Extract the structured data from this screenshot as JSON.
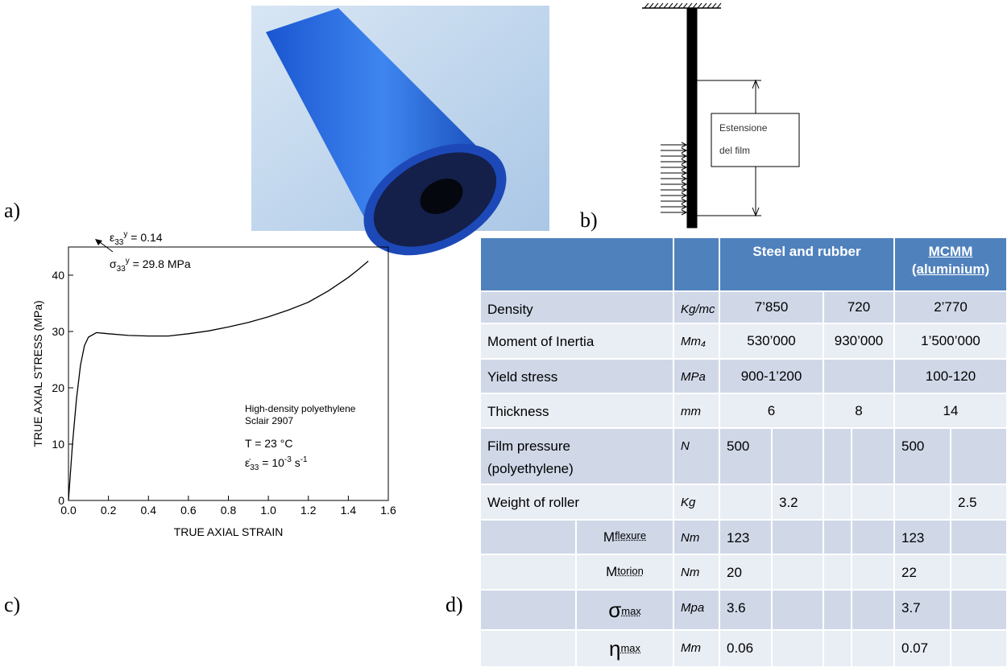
{
  "panel_labels": [
    "a)",
    "b)",
    "c)",
    "d)"
  ],
  "diagram": {
    "box_label": [
      "Estensione",
      "del film"
    ]
  },
  "chart_data": {
    "type": "line",
    "x_label": "TRUE AXIAL STRAIN",
    "y_label": "TRUE AXIAL STRESS (MPa)",
    "x": [
      0,
      0.02,
      0.04,
      0.06,
      0.08,
      0.1,
      0.14,
      0.2,
      0.3,
      0.4,
      0.5,
      0.6,
      0.7,
      0.8,
      0.9,
      1.0,
      1.1,
      1.2,
      1.3,
      1.4,
      1.45,
      1.5
    ],
    "values": [
      0,
      10,
      18,
      24,
      27.5,
      29,
      29.8,
      29.6,
      29.3,
      29.2,
      29.2,
      29.6,
      30.1,
      30.8,
      31.6,
      32.6,
      33.8,
      35.2,
      37.2,
      39.6,
      41,
      42.5
    ],
    "color": "#000000",
    "xlim": [
      0,
      1.6
    ],
    "ylim": [
      0,
      45
    ],
    "xticks": [
      {
        "value": 0,
        "label": "0.0"
      },
      0.2,
      0.4,
      0.6,
      0.8,
      {
        "value": 1,
        "label": "1.0"
      },
      1.2,
      1.4,
      1.6
    ],
    "yticks": [
      0,
      10,
      20,
      30,
      40
    ],
    "annotations": {
      "strain": [
        "ε",
        "33",
        "y",
        " = 0.14"
      ],
      "stress": [
        "σ",
        "33",
        "y",
        " = 29.8 MPa"
      ],
      "material": [
        "High-density polyethylene",
        "Sclair 2907"
      ],
      "temperature": "T = 23 °C",
      "rate": [
        "ε̇",
        "33",
        " = 10",
        "-3",
        " s",
        "-1"
      ]
    }
  },
  "table": {
    "header": {
      "group1": "Steel and rubber",
      "group2": [
        "MCMM",
        "(aluminium)"
      ]
    },
    "rows": [
      {
        "label": "Density",
        "unit": "Kg/mc",
        "cells": [
          "7’850",
          "720",
          "2’770"
        ]
      },
      {
        "label": "Moment of Inertia",
        "unit": "Mm₄",
        "cells": [
          "530’000",
          "930’000",
          "1’500’000"
        ]
      },
      {
        "label": "Yield stress",
        "unit": "MPa",
        "cells": [
          "900-1’200",
          null,
          "100-120"
        ]
      },
      {
        "label": "Thickness",
        "unit": "mm",
        "cells": [
          "6",
          "8",
          "14"
        ]
      },
      {
        "label": [
          "Film pressure",
          "(polyethylene)"
        ],
        "unit": "N",
        "cells": [
          "500",
          null,
          null,
          null,
          "500",
          null
        ]
      },
      {
        "label": "Weight of roller",
        "unit": "Kg",
        "cells": [
          null,
          "3.2",
          null,
          null,
          null,
          "2.5"
        ]
      },
      {
        "symbol": "M",
        "sub": "flexure",
        "unit": "Nm",
        "cells": [
          "123",
          null,
          null,
          null,
          "123",
          null
        ]
      },
      {
        "symbol": "M",
        "sub": "torion",
        "unit": "Nm",
        "cells": [
          "20",
          null,
          null,
          null,
          "22",
          null
        ]
      },
      {
        "symbol": "σ",
        "sub": "max",
        "unit": "Mpa",
        "cells": [
          "3.6",
          null,
          null,
          null,
          "3.7",
          null
        ]
      },
      {
        "symbol": "η",
        "sub": "max",
        "unit": "Mm",
        "cells": [
          "0.06",
          null,
          null,
          null,
          "0.07",
          null
        ]
      }
    ]
  }
}
